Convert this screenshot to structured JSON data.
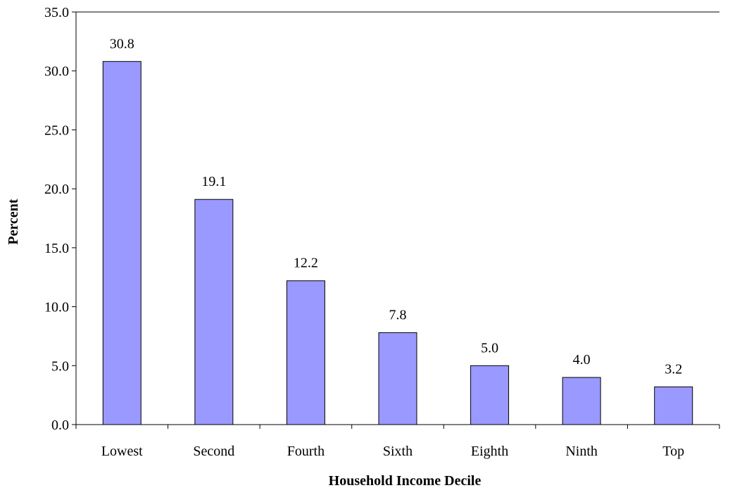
{
  "chart_data": {
    "type": "bar",
    "categories": [
      "Lowest",
      "Second",
      "Fourth",
      "Sixth",
      "Eighth",
      "Ninth",
      "Top"
    ],
    "values": [
      30.8,
      19.1,
      12.2,
      7.8,
      5.0,
      4.0,
      3.2
    ],
    "data_labels": [
      "30.8",
      "19.1",
      "12.2",
      "7.8",
      "5.0",
      "4.0",
      "3.2"
    ],
    "xlabel": "Household Income Decile",
    "ylabel": "Percent",
    "ylim": [
      0,
      35
    ],
    "y_ticks": [
      0,
      5,
      10,
      15,
      20,
      25,
      30,
      35
    ],
    "y_tick_labels": [
      "0.0",
      "5.0",
      "10.0",
      "15.0",
      "20.0",
      "25.0",
      "30.0",
      "35.0"
    ],
    "grid": false,
    "legend": "none",
    "colors": {
      "bar_fill": "#9999ff",
      "bar_stroke": "#000000",
      "axis": "#000000"
    }
  }
}
